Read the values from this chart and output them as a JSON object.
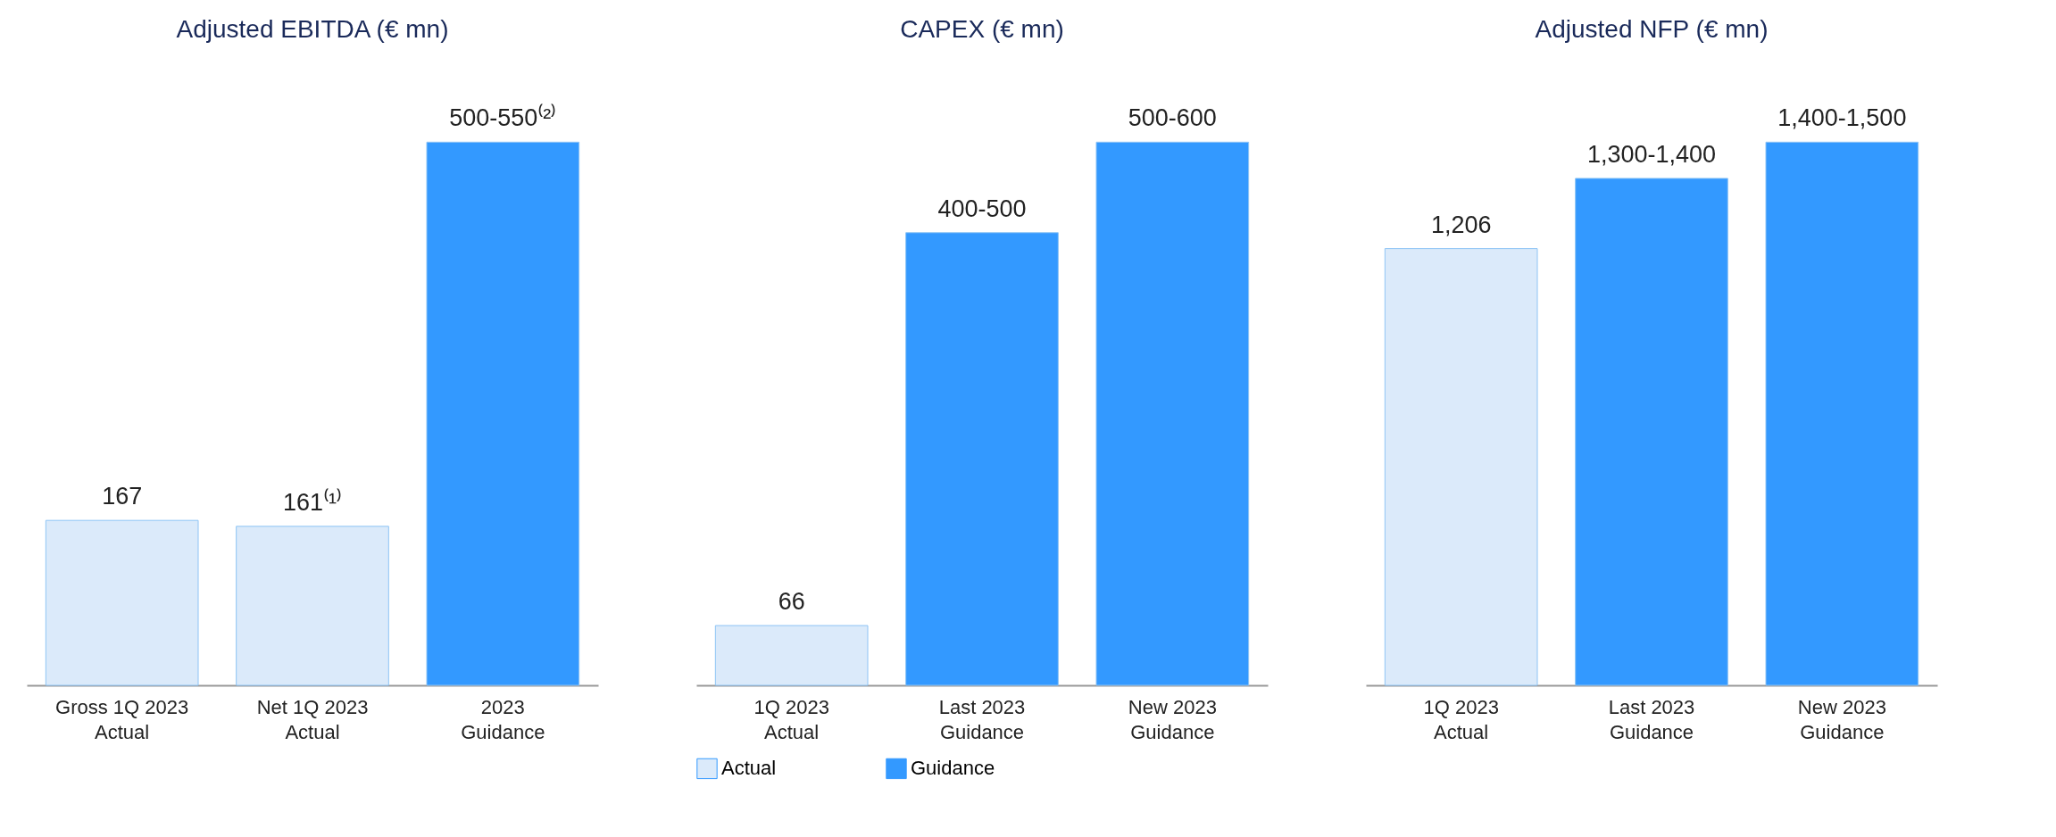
{
  "chart_data": [
    {
      "type": "bar",
      "title": "Adjusted EBITDA (€ mn)",
      "categories": [
        "Gross 1Q 2023\nActual",
        "Net 1Q 2023\nActual",
        "2023\nGuidance"
      ],
      "tick_labels": "x",
      "series": [
        {
          "color": "#dbeafa",
          "values": [
            167,
            161,
            null
          ],
          "value_labels": [
            "167",
            "161⁽¹⁾",
            null
          ]
        },
        {
          "color": "#3399ff",
          "values": [
            null,
            null,
            550
          ],
          "value_labels": [
            null,
            null,
            "500-550⁽²⁾"
          ]
        }
      ]
    },
    {
      "type": "bar",
      "title": "CAPEX (€ mn)",
      "categories": [
        "1Q 2023\nActual",
        "Last 2023\nGuidance",
        "New 2023\nGuidance"
      ],
      "tick_labels": "x",
      "legend": "bottom",
      "series": [
        {
          "name": "Actual",
          "color": "#dbeafa",
          "values": [
            66,
            null,
            null
          ],
          "value_labels": [
            "66",
            null,
            null
          ]
        },
        {
          "name": "Guidance",
          "color": "#3399ff",
          "values": [
            null,
            500,
            600
          ],
          "value_labels": [
            null,
            "400-500",
            "500-600"
          ]
        }
      ]
    },
    {
      "type": "bar",
      "title": "Adjusted NFP (€ mn)",
      "categories": [
        "1Q 2023\nActual",
        "Last 2023\nGuidance",
        "New 2023\nGuidance"
      ],
      "tick_labels": "x",
      "series": [
        {
          "color": "#dbeafa",
          "values": [
            1206,
            null,
            null
          ],
          "value_labels": [
            "1,206",
            null,
            null
          ]
        },
        {
          "color": "#3399ff",
          "values": [
            null,
            1400,
            1500
          ],
          "value_labels": [
            null,
            "1,300-1,400",
            "1,400-1,500"
          ]
        }
      ]
    }
  ]
}
